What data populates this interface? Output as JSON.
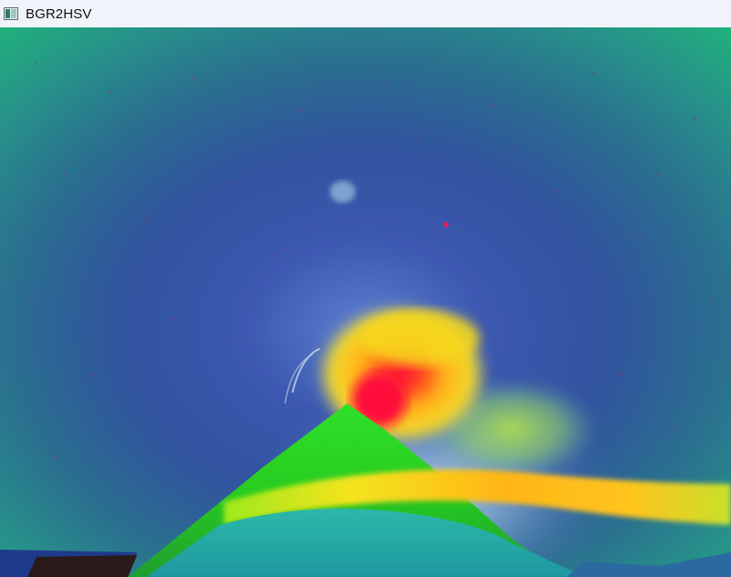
{
  "window": {
    "title": "BGR2HSV",
    "icon": "app-window-icon"
  },
  "image": {
    "description_icon": "image-canvas",
    "colors": {
      "sky_outer": "#1fa87a",
      "sky_mid": "#2c7f8c",
      "sky_inner": "#3a5fa8",
      "halo": "#7fb0c8",
      "plume_yellow": "#f0d020",
      "plume_orange": "#ff9a1a",
      "crater_red": "#ff1040",
      "lava_green": "#3cd61a",
      "ground_teal": "#1aa8a8",
      "ground_dark": "#1f2a3a"
    }
  }
}
